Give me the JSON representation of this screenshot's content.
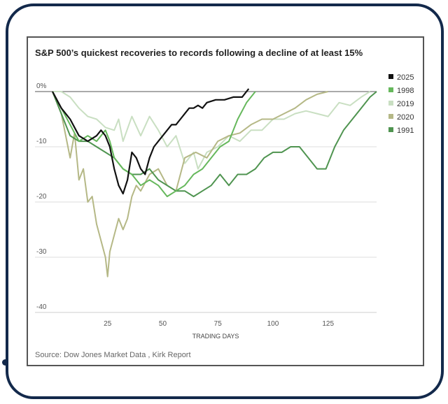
{
  "chart_data": {
    "type": "line",
    "title": "S&P 500’s quickest recoveries to records following a decline of at least 15%",
    "xlabel": "TRADING DAYS",
    "ylabel": "",
    "xlim": [
      0,
      147
    ],
    "ylim": [
      -40,
      0
    ],
    "xticks": [
      25,
      50,
      75,
      100,
      125
    ],
    "yticks": [
      0,
      -10,
      -20,
      -30,
      -40
    ],
    "ytick_labels": [
      "0%",
      "-10",
      "-20",
      "-30",
      "-40"
    ],
    "legend_position": "right",
    "source": "Source: Dow Jones Market Data , Kirk Report",
    "series": [
      {
        "name": "2019",
        "color": "#c9dfc2",
        "x": [
          0,
          4,
          8,
          12,
          16,
          20,
          24,
          28,
          30,
          32,
          36,
          40,
          44,
          48,
          52,
          56,
          60,
          64,
          66,
          70,
          75,
          80,
          85,
          90,
          95,
          100,
          105,
          110,
          115,
          120,
          125,
          130,
          135,
          140,
          144
        ],
        "y": [
          0,
          0,
          -1,
          -3,
          -4.5,
          -5,
          -6.5,
          -7,
          -5,
          -9,
          -4.5,
          -8,
          -4.5,
          -7,
          -10,
          -8,
          -13,
          -11,
          -14,
          -11,
          -10,
          -8,
          -9,
          -7,
          -7,
          -5,
          -5,
          -4,
          -3.5,
          -4,
          -4.5,
          -2,
          -2.5,
          -1,
          0
        ]
      },
      {
        "name": "2020",
        "color": "#b5b886",
        "x": [
          0,
          4,
          8,
          10,
          12,
          14,
          16,
          18,
          20,
          22,
          24,
          25,
          26,
          28,
          30,
          32,
          34,
          36,
          38,
          40,
          44,
          48,
          52,
          56,
          60,
          65,
          70,
          75,
          80,
          85,
          90,
          95,
          100,
          105,
          110,
          115,
          120,
          125
        ],
        "y": [
          0,
          -4,
          -12,
          -7.5,
          -16,
          -14,
          -20,
          -19,
          -24,
          -27,
          -30,
          -33.5,
          -29,
          -26,
          -23,
          -25,
          -23,
          -19,
          -17,
          -18,
          -15,
          -14,
          -17,
          -18,
          -12,
          -11,
          -12,
          -9,
          -8,
          -7.5,
          -6,
          -5,
          -5,
          -4,
          -3,
          -1.5,
          -0.5,
          0
        ]
      },
      {
        "name": "1991",
        "color": "#4f9450",
        "x": [
          0,
          4,
          8,
          12,
          16,
          20,
          24,
          28,
          32,
          36,
          40,
          44,
          48,
          52,
          56,
          60,
          64,
          68,
          72,
          76,
          80,
          84,
          88,
          92,
          96,
          100,
          104,
          108,
          112,
          116,
          120,
          124,
          128,
          132,
          136,
          140,
          144,
          147
        ],
        "y": [
          0,
          -4,
          -8,
          -9,
          -9,
          -10,
          -11,
          -12,
          -14,
          -15,
          -15,
          -14,
          -16,
          -17,
          -18,
          -18,
          -19,
          -18,
          -17,
          -15,
          -17,
          -15,
          -15,
          -14,
          -12,
          -11,
          -11,
          -10,
          -10,
          -12,
          -14,
          -14,
          -10,
          -7,
          -5,
          -3,
          -1,
          0
        ]
      },
      {
        "name": "1998",
        "color": "#66b85c",
        "x": [
          0,
          4,
          8,
          12,
          16,
          20,
          24,
          26,
          28,
          32,
          36,
          40,
          44,
          48,
          52,
          56,
          60,
          64,
          68,
          72,
          76,
          80,
          84,
          88,
          92
        ],
        "y": [
          0,
          -3,
          -6,
          -9,
          -8,
          -9,
          -7,
          -9,
          -12,
          -14,
          -15,
          -17,
          -16,
          -17,
          -19,
          -18,
          -17,
          -15,
          -14,
          -12,
          -10,
          -9,
          -5,
          -2,
          0
        ]
      },
      {
        "name": "2025",
        "color": "#111111",
        "x": [
          0,
          4,
          8,
          12,
          16,
          20,
          22,
          24,
          26,
          28,
          30,
          32,
          34,
          36,
          38,
          40,
          42,
          44,
          46,
          48,
          50,
          52,
          54,
          56,
          58,
          60,
          62,
          64,
          66,
          68,
          70,
          74,
          78,
          82,
          86,
          89
        ],
        "y": [
          0,
          -3,
          -5,
          -8,
          -9,
          -8,
          -7,
          -8,
          -10,
          -14,
          -17,
          -18.5,
          -16,
          -11,
          -12,
          -14,
          -15,
          -12,
          -10,
          -9,
          -8,
          -7,
          -6,
          -6,
          -5,
          -4,
          -3,
          -3,
          -2.5,
          -3,
          -2,
          -1.5,
          -1.5,
          -1,
          -1,
          0.5
        ]
      }
    ]
  }
}
